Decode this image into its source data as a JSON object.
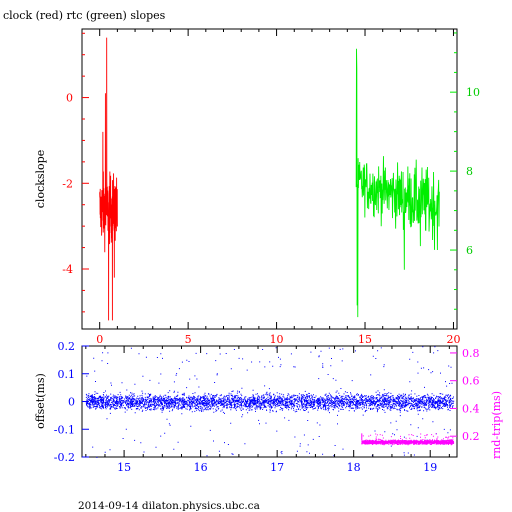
{
  "chart_data": [
    {
      "type": "line",
      "title": "clock (red) rtc (green) slopes",
      "ylabel": "clockslope",
      "xlim": [
        -1.0,
        20.2
      ],
      "xticks": [
        0,
        5,
        10,
        15,
        20
      ],
      "ylim_left": [
        -5.4,
        1.6
      ],
      "yticks_left": [
        0,
        -2,
        -4
      ],
      "ylim_right": [
        4.0,
        11.6
      ],
      "yticks_right": [
        10,
        8,
        6
      ],
      "grid": false,
      "colors": {
        "clock": "#ff0000",
        "rtc": "#00ee00",
        "axis_left": "#ff0000",
        "axis_right": "#00ee00"
      },
      "series": [
        {
          "key": "clock",
          "axis": "left",
          "x_range": [
            0.0,
            1.0
          ],
          "y_center": -2.6,
          "y_spread": 0.55,
          "y_min": -5.2,
          "y_max": 1.4
        },
        {
          "key": "rtc",
          "axis": "right",
          "x_range": [
            14.5,
            19.2
          ],
          "y_start": 7.7,
          "y_end": 7.1,
          "y_spread": 0.55,
          "y_min": 4.3,
          "y_max": 11.1
        }
      ]
    },
    {
      "type": "scatter",
      "ylabel_left": "offset(ms)",
      "ylabel_right": "rnd-trip(ms)",
      "xlim": [
        14.45,
        19.35
      ],
      "xticks": [
        15,
        16,
        17,
        18,
        19
      ],
      "ylim_left": [
        -0.2,
        0.2
      ],
      "yticks_left": [
        0.2,
        0.1,
        0,
        -0.1,
        -0.2
      ],
      "ylim_right": [
        0.05,
        0.85
      ],
      "yticks_right": [
        0.8,
        0.6,
        0.4,
        0.2
      ],
      "colors": {
        "offset": "#0000ff",
        "rtt": "#ff00ff",
        "axis_left": "#0000ff",
        "axis_right": "#ff00ff"
      },
      "series": [
        {
          "key": "offset",
          "axis": "left",
          "x_range": [
            14.5,
            19.3
          ],
          "y_center": 0.0,
          "y_spread": 0.02,
          "outlier_range": [
            -0.2,
            0.2
          ]
        },
        {
          "key": "rtt",
          "axis": "right",
          "x_range": [
            18.1,
            19.3
          ],
          "y_center": 0.16,
          "y_spread": 0.02,
          "outlier_range": [
            0.15,
            0.22
          ]
        }
      ]
    }
  ],
  "footer": "2014-09-14 dilaton.physics.ubc.ca"
}
